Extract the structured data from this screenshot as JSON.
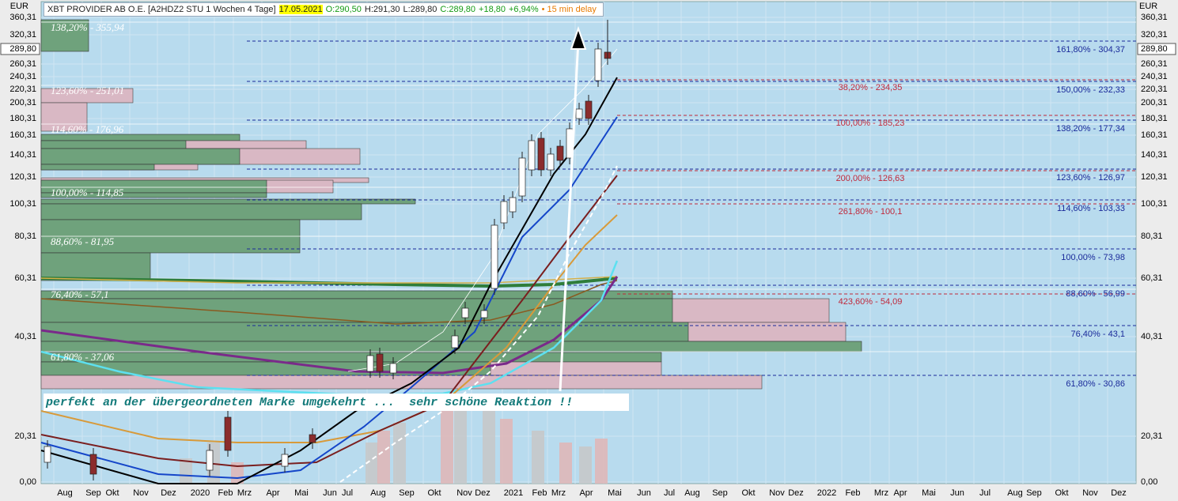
{
  "header": {
    "instrument": "XBT PROVIDER AB O.E. [A2HDZ2 STU 1 Wochen 4 Tage]",
    "date": "17.05.2021",
    "open": "O:290,50",
    "high": "H:291,30",
    "low": "L:289,80",
    "close": "C:289,80",
    "change": "+18,80",
    "change_pct": "+6,94%",
    "delay": "• 15 min delay"
  },
  "currency": "EUR",
  "price_axis": {
    "labels": [
      "360,31",
      "320,31",
      "260,31",
      "240,31",
      "220,31",
      "200,31",
      "180,31",
      "160,31",
      "140,31",
      "120,31",
      "100,31",
      "80,31",
      "60,31",
      "40,31",
      "20,31",
      "0,00"
    ],
    "last_price": "289,80"
  },
  "time_axis": {
    "labels": [
      "Aug",
      "Sep",
      "Okt",
      "Nov",
      "Dez",
      "2020",
      "Feb",
      "Mrz",
      "Apr",
      "Mai",
      "Jun",
      "Jul",
      "Aug",
      "Sep",
      "Okt",
      "Nov",
      "Dez",
      "2021",
      "Feb",
      "Mrz",
      "Apr",
      "Mai",
      "Jun",
      "Jul",
      "Aug",
      "Sep",
      "Okt",
      "Nov",
      "Dez",
      "2022",
      "Feb",
      "Mrz",
      "Apr",
      "Mai",
      "Jun",
      "Jul",
      "Aug",
      "Sep",
      "Okt",
      "Nov",
      "Dez"
    ]
  },
  "fib_left": [
    "138,20% - 355,94",
    "123,60% - 251,01",
    "114,60% - 176,96",
    "100,00% - 114,85",
    "88,60% - 81,95",
    "76,40% - 57,1",
    "61,80% - 37,06"
  ],
  "fib_red": [
    "38,20% - 234,35",
    "100,00% - 185,23",
    "200,00% - 126,63",
    "261,80% - 100,1",
    "423,60% - 54,09"
  ],
  "fib_blue": [
    "161,80% - 304,37",
    "150,00% - 232,33",
    "138,20% - 177,34",
    "123,60% - 126,97",
    "114,60% - 103,33",
    "100,00% - 73,98",
    "88,60% - 56,99",
    "76,40% - 43,1",
    "61,80% - 30,86"
  ],
  "annotation": "perfekt an der übergeordneten Marke umgekehrt ...  sehr schöne Reaktion !!"
}
